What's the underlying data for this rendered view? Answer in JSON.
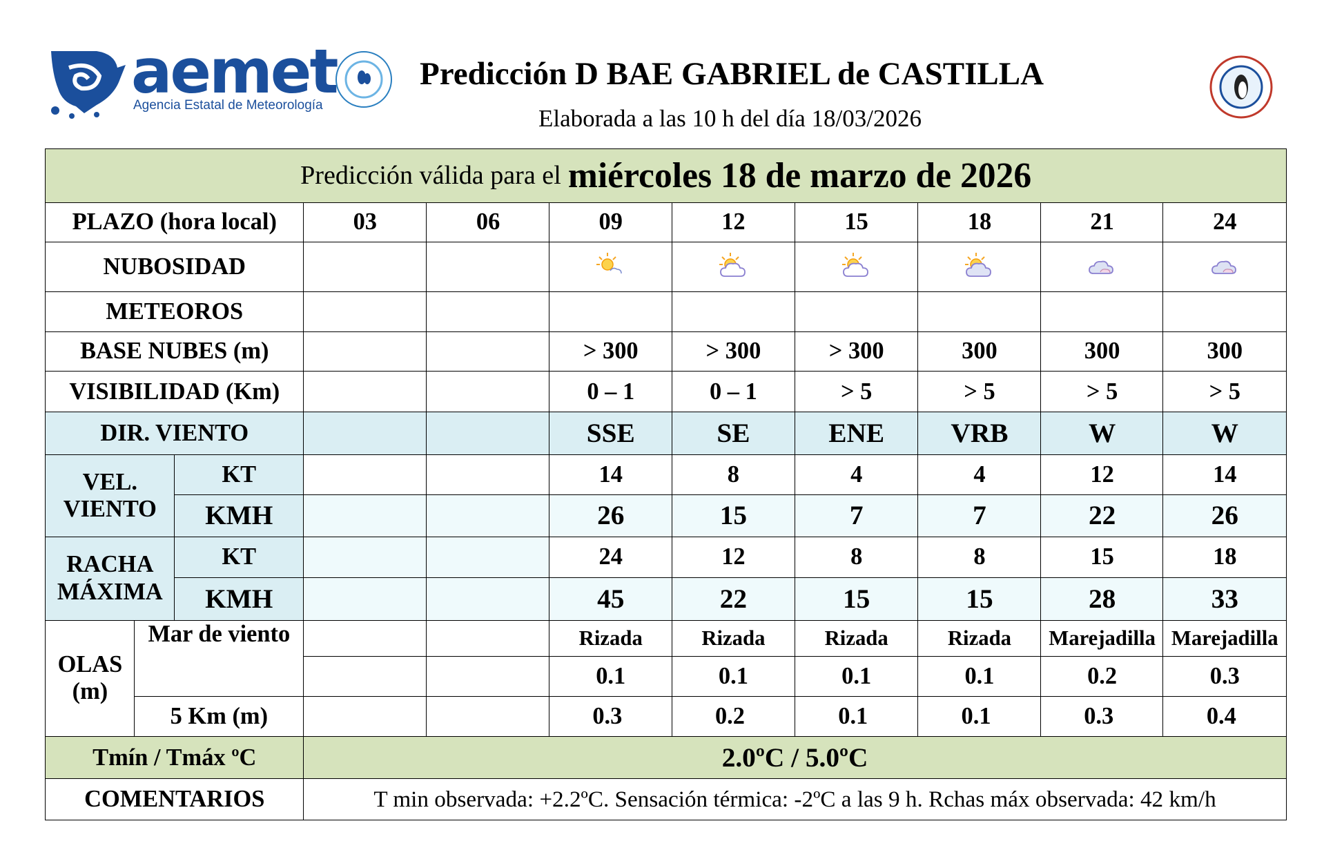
{
  "header": {
    "logo_name": "aemet",
    "logo_subtitle": "Agencia Estatal de Meteorología",
    "title": "Predicción D BAE GABRIEL de CASTILLA",
    "subtitle": "Elaborada a las 10 h del día 18/03/2026"
  },
  "table": {
    "validity_prefix": "Predicción válida para el",
    "validity_date": "miércoles 18 de marzo de 2026",
    "plazo": {
      "label": "PLAZO (hora local)",
      "hours": [
        "03",
        "06",
        "09",
        "12",
        "15",
        "18",
        "21",
        "24"
      ]
    },
    "nubosidad": {
      "label": "NUBOSIDAD"
    },
    "meteoros": {
      "label": "METEOROS"
    },
    "base_nubes": {
      "label": "BASE NUBES (m)",
      "values": [
        "> 300",
        "> 300",
        "> 300",
        300,
        300,
        300
      ]
    },
    "visibilidad": {
      "label": "VISIBILIDAD (Km)",
      "values": [
        "0 – 1",
        "0 – 1",
        "> 5",
        "> 5",
        "> 5",
        "> 5"
      ]
    },
    "dir_viento": {
      "label": "DIR. VIENTO",
      "values": [
        "SSE",
        "SE",
        "ENE",
        "VRB",
        "W",
        "W"
      ]
    },
    "vel_viento": {
      "label": "VEL. VIENTO",
      "kt_label": "KT",
      "kmh_label": "KMH",
      "kt": [
        14,
        8,
        4,
        4,
        12,
        14
      ],
      "kmh": [
        26,
        15,
        7,
        7,
        22,
        26
      ]
    },
    "racha_maxima": {
      "label": "RACHA MÁXIMA",
      "kt_label": "KT",
      "kmh_label": "KMH",
      "kt": [
        24,
        12,
        8,
        8,
        15,
        18
      ],
      "kmh": [
        45,
        22,
        15,
        15,
        28,
        33
      ]
    },
    "olas": {
      "label": "OLAS (m)",
      "mar_label": "Mar de viento",
      "mar_state": [
        "Rizada",
        "Rizada",
        "Rizada",
        "Rizada",
        "Marejadilla",
        "Marejadilla"
      ],
      "mar_height": [
        0.1,
        0.1,
        0.1,
        0.1,
        0.2,
        0.3
      ],
      "km5_label": "5 Km (m)",
      "km5": [
        0.3,
        0.2,
        0.1,
        0.1,
        0.3,
        0.4
      ]
    },
    "temperatura": {
      "label": "Tmín / Tmáx ºC",
      "value": "2.0ºC / 5.0ºC"
    },
    "comentarios": {
      "label": "COMENTARIOS",
      "text": "T min observada: +2.2ºC. Sensación térmica: -2ºC a las 9 h. Rchas máx observada: 42 km/h"
    }
  }
}
